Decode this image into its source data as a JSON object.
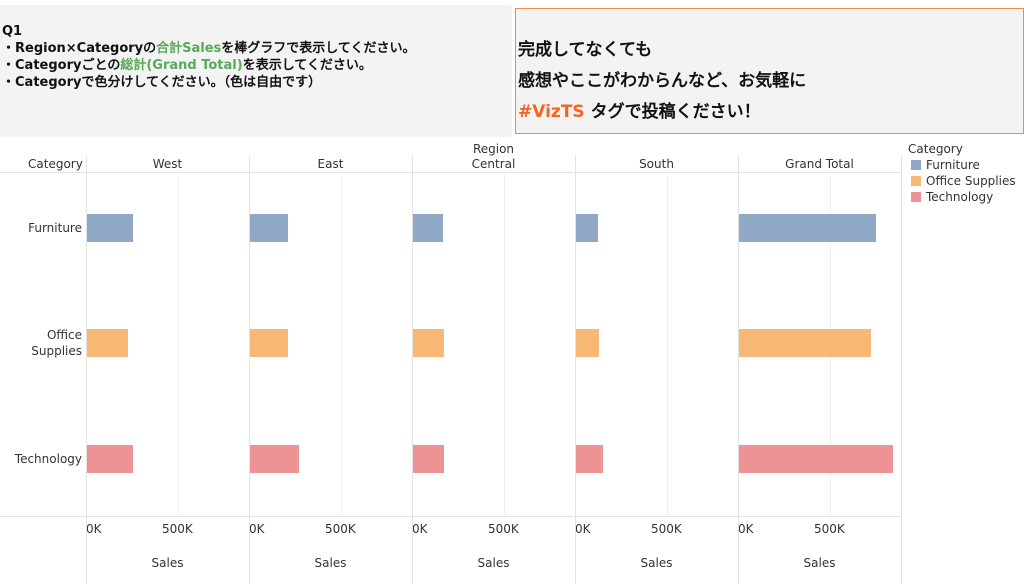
{
  "instructions": {
    "q": "Q1",
    "line1": [
      "・Region×Categoryの",
      "合計Sales",
      "を棒グラフで表示してください。"
    ],
    "line2": [
      "・Categoryごとの",
      "総計(Grand Total)",
      "を表示してください。"
    ],
    "line3": "・Categoryで色分けしてください。（色は自由です）"
  },
  "note": {
    "line1": "完成してなくても",
    "line2": "感想やここがわからんなど、お気軽に",
    "tag": "#VizTS",
    "line3": " タグで投稿ください！"
  },
  "chart_data": {
    "type": "bar",
    "orientation": "horizontal",
    "title": "",
    "column_header": "Region",
    "row_header": "Category",
    "panels": [
      "West",
      "East",
      "Central",
      "South",
      "Grand Total"
    ],
    "categories": [
      "Furniture",
      "Office Supplies",
      "Technology"
    ],
    "category_labels": [
      [
        "Furniture"
      ],
      [
        "Office",
        "Supplies"
      ],
      [
        "Technology"
      ]
    ],
    "series": [
      {
        "name": "West",
        "values": [
          252612,
          220853,
          251992
        ]
      },
      {
        "name": "East",
        "values": [
          208291,
          205516,
          264974
        ]
      },
      {
        "name": "Central",
        "values": [
          163797,
          167026,
          170416
        ]
      },
      {
        "name": "South",
        "values": [
          117299,
          125651,
          148772
        ]
      },
      {
        "name": "Grand Total",
        "values": [
          742000,
          719047,
          836154
        ]
      }
    ],
    "xlabel": "Sales",
    "xticks": [
      "0K",
      "500K"
    ],
    "xtick_values": [
      0,
      500000
    ],
    "xlim": [
      0,
      886000
    ],
    "legend": {
      "title": "Category",
      "items": [
        "Furniture",
        "Office Supplies",
        "Technology"
      ],
      "position": "top-right"
    },
    "colors": [
      "#8ea8c6",
      "#f7b775",
      "#ed9295"
    ]
  }
}
